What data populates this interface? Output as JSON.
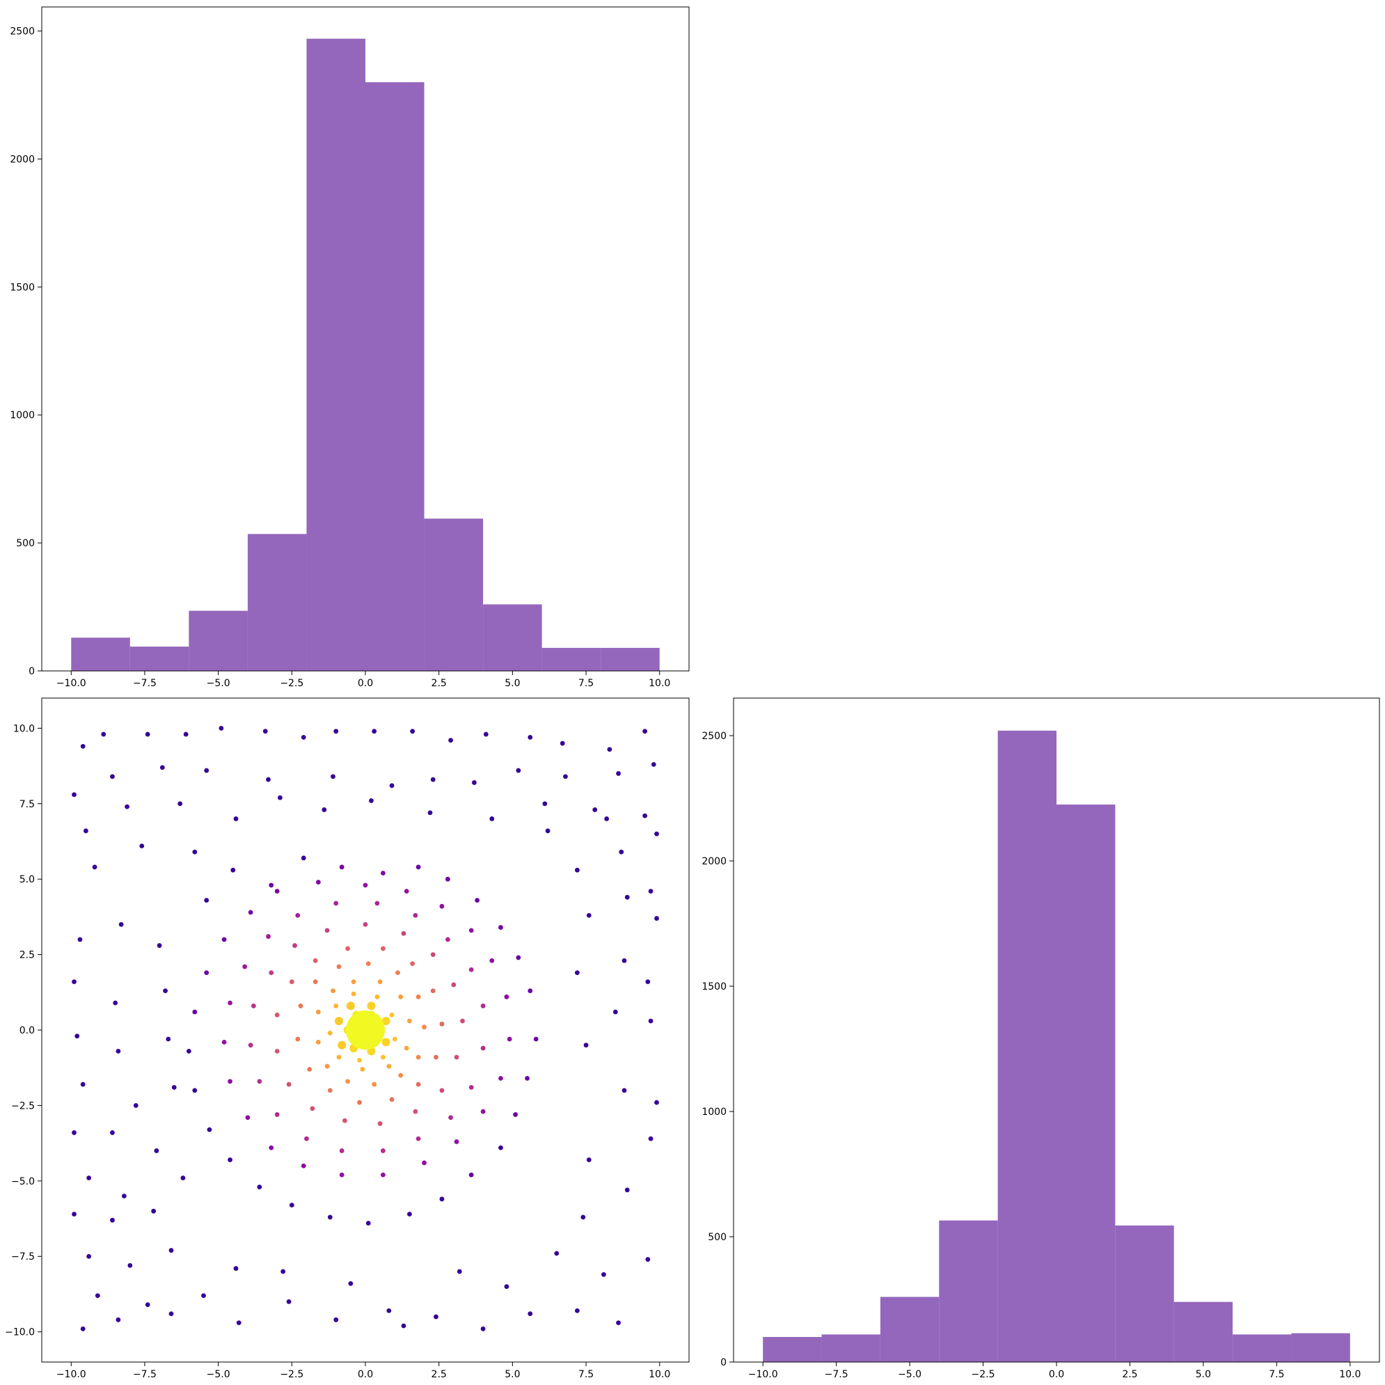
{
  "colors": {
    "histogram_fill": "#9467bd",
    "axes": "#000000",
    "background": "#ffffff",
    "scatter_colormap": "plasma"
  },
  "chart_data": [
    {
      "id": "hist-x",
      "type": "bar",
      "subtype": "histogram",
      "title": "",
      "xlabel": "",
      "ylabel": "",
      "xlim": [
        -11.0,
        11.0
      ],
      "ylim": [
        0,
        2594
      ],
      "xticks": [
        "−10.0",
        "−7.5",
        "−5.0",
        "−2.5",
        "0.0",
        "2.5",
        "5.0",
        "7.5",
        "10.0"
      ],
      "yticks": [
        "0",
        "500",
        "1000",
        "1500",
        "2000",
        "2500"
      ],
      "bin_edges": [
        -10,
        -8,
        -6,
        -4,
        -2,
        0,
        2,
        4,
        6,
        8,
        10
      ],
      "values": [
        130,
        95,
        235,
        535,
        2470,
        2300,
        595,
        260,
        90,
        90
      ]
    },
    {
      "id": "scatter-xy",
      "type": "scatter",
      "title": "",
      "xlabel": "",
      "ylabel": "",
      "xlim": [
        -11.0,
        11.0
      ],
      "ylim": [
        -11.0,
        11.0
      ],
      "xticks": [
        "−10.0",
        "−7.5",
        "−5.0",
        "−2.5",
        "0.0",
        "2.5",
        "5.0",
        "7.5",
        "10.0"
      ],
      "yticks": [
        "−10.0",
        "−7.5",
        "−5.0",
        "−2.5",
        "0.0",
        "2.5",
        "5.0",
        "7.5",
        "10.0"
      ],
      "colormap": "plasma",
      "points": [
        [
          -9.6,
          9.4
        ],
        [
          -8.9,
          9.8
        ],
        [
          -7.4,
          9.8
        ],
        [
          -6.1,
          9.8
        ],
        [
          -4.9,
          10.0
        ],
        [
          -3.4,
          9.9
        ],
        [
          -2.1,
          9.7
        ],
        [
          -1.0,
          9.9
        ],
        [
          0.3,
          9.9
        ],
        [
          1.6,
          9.9
        ],
        [
          2.9,
          9.6
        ],
        [
          4.1,
          9.8
        ],
        [
          5.6,
          9.7
        ],
        [
          6.7,
          9.5
        ],
        [
          8.3,
          9.3
        ],
        [
          9.5,
          9.9
        ],
        [
          -9.9,
          7.8
        ],
        [
          -8.6,
          8.4
        ],
        [
          -6.9,
          8.7
        ],
        [
          -5.4,
          8.6
        ],
        [
          -3.3,
          8.3
        ],
        [
          -1.1,
          8.4
        ],
        [
          0.9,
          8.1
        ],
        [
          2.3,
          8.3
        ],
        [
          3.7,
          8.2
        ],
        [
          5.2,
          8.6
        ],
        [
          6.8,
          8.4
        ],
        [
          8.6,
          8.5
        ],
        [
          9.8,
          8.8
        ],
        [
          -9.5,
          6.6
        ],
        [
          -8.1,
          7.4
        ],
        [
          -6.3,
          7.5
        ],
        [
          -4.4,
          7.0
        ],
        [
          -2.9,
          7.7
        ],
        [
          -1.4,
          7.3
        ],
        [
          0.2,
          7.6
        ],
        [
          2.2,
          7.2
        ],
        [
          4.3,
          7.0
        ],
        [
          6.1,
          7.5
        ],
        [
          7.8,
          7.3
        ],
        [
          9.5,
          7.1
        ],
        [
          -9.2,
          5.4
        ],
        [
          -7.6,
          6.1
        ],
        [
          -5.8,
          5.9
        ],
        [
          -9.7,
          3.0
        ],
        [
          -8.3,
          3.5
        ],
        [
          -7.0,
          2.8
        ],
        [
          -9.9,
          1.6
        ],
        [
          -8.5,
          0.9
        ],
        [
          -6.8,
          1.3
        ],
        [
          -9.8,
          -0.2
        ],
        [
          -8.4,
          -0.7
        ],
        [
          -6.7,
          -0.3
        ],
        [
          -9.6,
          -1.8
        ],
        [
          -7.8,
          -2.5
        ],
        [
          -6.5,
          -1.9
        ],
        [
          -9.9,
          -3.4
        ],
        [
          -8.6,
          -3.4
        ],
        [
          -7.1,
          -4.0
        ],
        [
          -9.4,
          -4.9
        ],
        [
          -8.2,
          -5.5
        ],
        [
          -6.2,
          -4.9
        ],
        [
          -9.9,
          -6.1
        ],
        [
          -8.6,
          -6.3
        ],
        [
          -7.2,
          -6.0
        ],
        [
          -9.4,
          -7.5
        ],
        [
          -8.0,
          -7.8
        ],
        [
          -6.6,
          -7.3
        ],
        [
          -9.1,
          -8.8
        ],
        [
          -7.4,
          -9.1
        ],
        [
          -5.5,
          -8.8
        ],
        [
          -9.6,
          -9.9
        ],
        [
          -8.4,
          -9.6
        ],
        [
          -6.6,
          -9.4
        ],
        [
          -4.3,
          -9.7
        ],
        [
          -2.6,
          -9.0
        ],
        [
          -1.0,
          -9.6
        ],
        [
          0.8,
          -9.3
        ],
        [
          2.4,
          -9.5
        ],
        [
          4.0,
          -9.9
        ],
        [
          5.6,
          -9.4
        ],
        [
          7.2,
          -9.3
        ],
        [
          8.6,
          -9.7
        ],
        [
          -4.4,
          -7.9
        ],
        [
          -2.8,
          -8.0
        ],
        [
          -0.5,
          -8.4
        ],
        [
          1.3,
          -9.8
        ],
        [
          3.2,
          -8.0
        ],
        [
          4.8,
          -8.5
        ],
        [
          6.5,
          -7.4
        ],
        [
          8.1,
          -8.1
        ],
        [
          9.6,
          -7.6
        ],
        [
          7.4,
          -6.2
        ],
        [
          8.9,
          -5.3
        ],
        [
          9.7,
          -3.6
        ],
        [
          7.6,
          -4.3
        ],
        [
          8.8,
          -2.0
        ],
        [
          9.9,
          -2.4
        ],
        [
          7.5,
          -0.5
        ],
        [
          8.5,
          0.6
        ],
        [
          9.7,
          0.3
        ],
        [
          7.2,
          1.9
        ],
        [
          8.8,
          2.3
        ],
        [
          9.6,
          1.6
        ],
        [
          7.6,
          3.8
        ],
        [
          8.9,
          4.4
        ],
        [
          9.9,
          3.7
        ],
        [
          7.2,
          5.3
        ],
        [
          8.7,
          5.9
        ],
        [
          9.7,
          4.6
        ],
        [
          6.2,
          6.6
        ],
        [
          8.2,
          7.0
        ],
        [
          9.9,
          6.5
        ],
        [
          -5.4,
          4.3
        ],
        [
          -4.5,
          5.3
        ],
        [
          -3.2,
          4.8
        ],
        [
          -2.1,
          5.7
        ],
        [
          -0.8,
          5.4
        ],
        [
          0.6,
          5.2
        ],
        [
          1.8,
          5.4
        ],
        [
          2.8,
          5.0
        ],
        [
          3.8,
          4.3
        ],
        [
          4.6,
          3.4
        ],
        [
          5.2,
          2.4
        ],
        [
          5.6,
          1.3
        ],
        [
          5.8,
          -0.3
        ],
        [
          5.5,
          -1.6
        ],
        [
          5.1,
          -2.8
        ],
        [
          4.6,
          -3.9
        ],
        [
          3.6,
          -4.8
        ],
        [
          2.6,
          -5.6
        ],
        [
          1.5,
          -6.1
        ],
        [
          0.1,
          -6.4
        ],
        [
          -1.2,
          -6.2
        ],
        [
          -2.5,
          -5.8
        ],
        [
          -3.6,
          -5.2
        ],
        [
          -4.6,
          -4.3
        ],
        [
          -5.3,
          -3.3
        ],
        [
          -5.8,
          -2.0
        ],
        [
          -6.0,
          -0.7
        ],
        [
          -5.8,
          0.6
        ],
        [
          -5.4,
          1.9
        ],
        [
          -4.8,
          3.0
        ],
        [
          -3.9,
          3.9
        ],
        [
          -3.0,
          4.6
        ],
        [
          -1.6,
          4.9
        ],
        [
          0.0,
          4.8
        ],
        [
          1.4,
          4.6
        ],
        [
          2.6,
          4.1
        ],
        [
          3.6,
          3.3
        ],
        [
          4.3,
          2.3
        ],
        [
          4.8,
          1.1
        ],
        [
          4.9,
          -0.3
        ],
        [
          4.6,
          -1.6
        ],
        [
          4.0,
          -2.7
        ],
        [
          3.1,
          -3.7
        ],
        [
          2.0,
          -4.4
        ],
        [
          0.6,
          -4.8
        ],
        [
          -0.8,
          -4.8
        ],
        [
          -2.1,
          -4.5
        ],
        [
          -3.2,
          -3.9
        ],
        [
          -4.0,
          -2.9
        ],
        [
          -4.6,
          -1.7
        ],
        [
          -4.8,
          -0.4
        ],
        [
          -4.6,
          0.9
        ],
        [
          -4.1,
          2.1
        ],
        [
          -3.3,
          3.1
        ],
        [
          -2.3,
          3.8
        ],
        [
          -1.0,
          4.2
        ],
        [
          0.4,
          4.2
        ],
        [
          1.7,
          3.8
        ],
        [
          2.8,
          3.0
        ],
        [
          3.6,
          2.0
        ],
        [
          4.0,
          0.8
        ],
        [
          4.0,
          -0.6
        ],
        [
          3.6,
          -1.9
        ],
        [
          2.9,
          -2.9
        ],
        [
          1.8,
          -3.6
        ],
        [
          0.6,
          -4.0
        ],
        [
          -0.8,
          -4.0
        ],
        [
          -2.0,
          -3.6
        ],
        [
          -3.0,
          -2.8
        ],
        [
          -3.6,
          -1.7
        ],
        [
          -3.9,
          -0.5
        ],
        [
          -3.8,
          0.8
        ],
        [
          -3.2,
          1.9
        ],
        [
          -2.4,
          2.8
        ],
        [
          -1.3,
          3.3
        ],
        [
          0.0,
          3.5
        ],
        [
          1.3,
          3.2
        ],
        [
          2.3,
          2.5
        ],
        [
          3.0,
          1.5
        ],
        [
          3.3,
          0.3
        ],
        [
          3.1,
          -0.9
        ],
        [
          2.6,
          -2.0
        ],
        [
          1.7,
          -2.7
        ],
        [
          0.5,
          -3.1
        ],
        [
          -0.7,
          -3.0
        ],
        [
          -1.8,
          -2.6
        ],
        [
          -2.6,
          -1.8
        ],
        [
          -3.0,
          -0.7
        ],
        [
          -3.0,
          0.5
        ],
        [
          -2.5,
          1.6
        ],
        [
          -1.7,
          2.3
        ],
        [
          -0.6,
          2.7
        ],
        [
          0.6,
          2.7
        ],
        [
          1.6,
          2.2
        ],
        [
          2.3,
          1.3
        ],
        [
          2.6,
          0.2
        ],
        [
          2.4,
          -0.9
        ],
        [
          1.8,
          -1.8
        ],
        [
          0.9,
          -2.3
        ],
        [
          -0.2,
          -2.4
        ],
        [
          -1.2,
          -2.0
        ],
        [
          -1.9,
          -1.3
        ],
        [
          -2.3,
          -0.3
        ],
        [
          -2.2,
          0.8
        ],
        [
          -1.7,
          1.6
        ],
        [
          -0.9,
          2.1
        ],
        [
          0.1,
          2.2
        ],
        [
          1.1,
          1.9
        ],
        [
          1.8,
          1.1
        ],
        [
          2.0,
          0.1
        ],
        [
          1.8,
          -0.9
        ],
        [
          1.2,
          -1.5
        ],
        [
          0.3,
          -1.8
        ],
        [
          -0.6,
          -1.7
        ],
        [
          -1.3,
          -1.2
        ],
        [
          -1.6,
          -0.4
        ],
        [
          -1.6,
          0.6
        ],
        [
          -1.1,
          1.3
        ],
        [
          -0.4,
          1.6
        ],
        [
          0.5,
          1.6
        ],
        [
          1.2,
          1.1
        ],
        [
          1.5,
          0.3
        ],
        [
          1.4,
          -0.6
        ],
        [
          0.8,
          -1.2
        ],
        [
          -0.1,
          -1.3
        ],
        [
          -0.9,
          -0.9
        ],
        [
          -1.2,
          -0.1
        ],
        [
          -1.0,
          0.8
        ],
        [
          -0.4,
          1.2
        ],
        [
          0.4,
          1.1
        ],
        [
          0.9,
          0.5
        ],
        [
          1.0,
          -0.3
        ],
        [
          0.6,
          -0.9
        ],
        [
          -0.2,
          -1.0
        ],
        [
          -0.8,
          -0.5
        ],
        [
          -0.9,
          0.3
        ],
        [
          -0.5,
          0.8
        ],
        [
          0.2,
          0.8
        ],
        [
          0.7,
          0.3
        ],
        [
          0.7,
          -0.4
        ],
        [
          0.2,
          -0.7
        ],
        [
          -0.4,
          -0.6
        ],
        [
          -0.6,
          0.0
        ],
        [
          -0.3,
          0.5
        ],
        [
          0.2,
          0.5
        ],
        [
          0.4,
          0.0
        ],
        [
          0.1,
          -0.4
        ],
        [
          -0.3,
          -0.2
        ],
        [
          -0.1,
          0.2
        ],
        [
          0.1,
          0.1
        ],
        [
          0.0,
          0.0
        ],
        [
          0.0,
          -0.1
        ],
        [
          -0.2,
          0.0
        ],
        [
          0.1,
          -0.2
        ],
        [
          -0.1,
          -0.1
        ]
      ]
    },
    {
      "id": "hist-y",
      "type": "bar",
      "subtype": "histogram",
      "title": "",
      "xlabel": "",
      "ylabel": "",
      "xlim": [
        -11.0,
        11.0
      ],
      "ylim": [
        0,
        2650
      ],
      "xticks": [
        "−10.0",
        "−7.5",
        "−5.0",
        "−2.5",
        "0.0",
        "2.5",
        "5.0",
        "7.5",
        "10.0"
      ],
      "yticks": [
        "0",
        "500",
        "1000",
        "1500",
        "2000",
        "2500"
      ],
      "bin_edges": [
        -10,
        -8,
        -6,
        -4,
        -2,
        0,
        2,
        4,
        6,
        8,
        10
      ],
      "values": [
        100,
        110,
        260,
        565,
        2520,
        2225,
        545,
        240,
        110,
        115
      ]
    }
  ]
}
